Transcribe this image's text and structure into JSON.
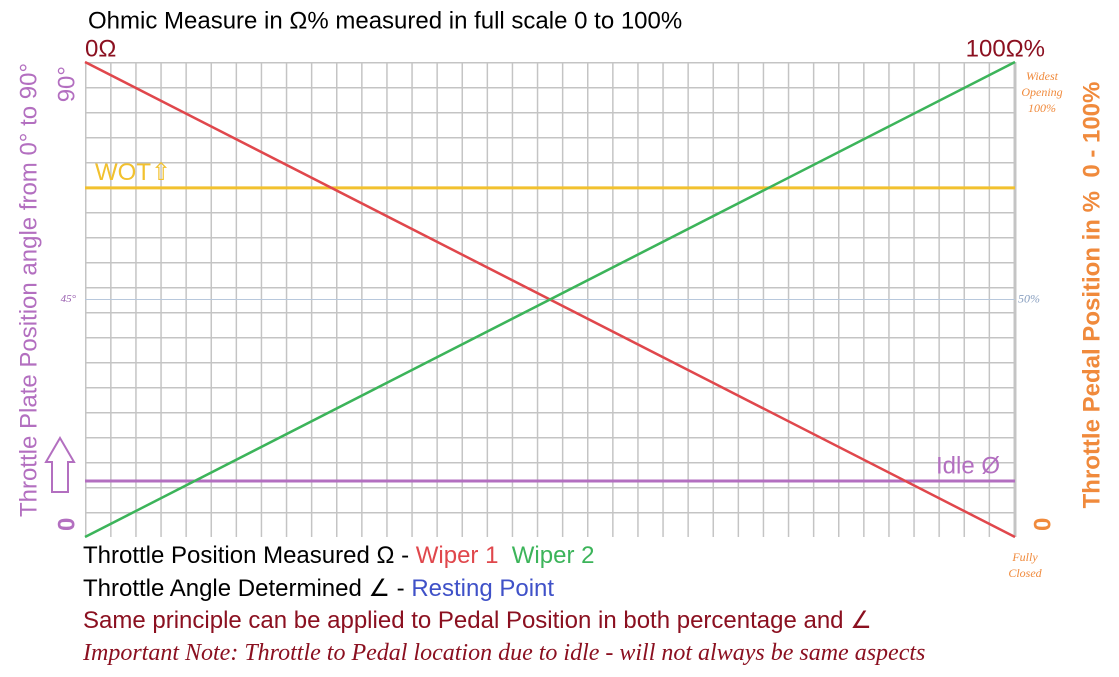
{
  "chart_data": {
    "type": "line",
    "title": "Ohmic Measure in Ω% measured in full scale 0 to 100%",
    "top_left_label": "0Ω",
    "top_right_label": "100Ω%",
    "y_label": "Throttle Plate Position angle from 0° to 90°",
    "y2_label": "Throttle Pedal Position in %  0 - 100%",
    "x": [
      0,
      100
    ],
    "xlim": [
      0,
      100
    ],
    "ylim": [
      0,
      100
    ],
    "yticks": [
      0,
      {
        "value": 50,
        "label": "45°"
      },
      {
        "value": 100,
        "label": "90°"
      }
    ],
    "y2lim": [
      0,
      100
    ],
    "y2ticks": [
      0,
      {
        "value": 50,
        "label": "50%"
      },
      {
        "value": 100,
        "label": "Widest Opening 100%"
      }
    ],
    "y2_bottom_note": "Fully Closed",
    "series": [
      {
        "name": "Wiper 1",
        "color": "#e0474c",
        "values": [
          100,
          0
        ]
      },
      {
        "name": "Wiper 2",
        "color": "#3cb45a",
        "values": [
          0,
          100
        ]
      }
    ],
    "reference_lines": [
      {
        "label": "WOT⇧",
        "value": 73.5,
        "color": "#f2c12e"
      },
      {
        "label": "Idle Ø",
        "value": 11.8,
        "color": "#b36fc0"
      }
    ],
    "legend_line_1": "Throttle Position Measured Ω - ",
    "legend_line_2": "Throttle Angle Determined ∠ - ",
    "resting_point": {
      "label": "Resting Point",
      "color": "#3f51c8"
    },
    "notes": [
      "Same principle can be applied to Pedal Position in both percentage and ∠",
      "Important Note: Throttle to Pedal location due to idle - will not always be same aspects"
    ]
  }
}
